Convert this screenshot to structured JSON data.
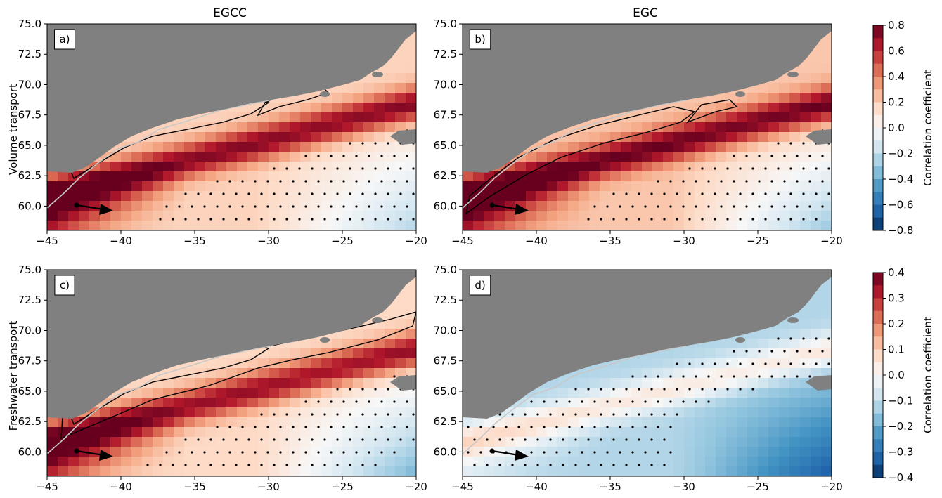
{
  "figure": {
    "column_titles": [
      "EGCC",
      "EGC"
    ],
    "row_labels": [
      "Volume transport",
      "Freshwater transport"
    ],
    "panel_labels": [
      "a)",
      "b)",
      "c)",
      "d)"
    ],
    "colorbar_label": "Correlation coefficient"
  },
  "colors": {
    "land": "#808080",
    "colormap": "RdBu_r",
    "significance_contour": "#000000",
    "front_line": "#c8c8c8",
    "stipple": "#000000"
  },
  "chart_data": [
    {
      "type": "heatmap",
      "panel": "a)",
      "title": "EGCC",
      "ylabel": "Volume transport",
      "xlim": [
        -45,
        -20
      ],
      "ylim": [
        58,
        75
      ],
      "xticks": [
        "−45",
        "−40",
        "−35",
        "−30",
        "−25",
        "−20"
      ],
      "yticks": [
        "60.0",
        "62.5",
        "65.0",
        "67.5",
        "70.0",
        "72.5",
        "75.0"
      ],
      "clim": [
        -0.8,
        0.8
      ],
      "features": {
        "shelf_max": 0.56,
        "ridge_max": 0.52,
        "interior_level": 0.18,
        "southeast_min": -0.2
      }
    },
    {
      "type": "heatmap",
      "panel": "b)",
      "title": "EGC",
      "xlim": [
        -45,
        -20
      ],
      "ylim": [
        58,
        75
      ],
      "xticks": [
        "−45",
        "−40",
        "−35",
        "−30",
        "−25",
        "−20"
      ],
      "yticks": [
        "60.0",
        "62.5",
        "65.0",
        "67.5",
        "70.0",
        "72.5",
        "75.0"
      ],
      "clim": [
        -0.8,
        0.8
      ],
      "features": {
        "shelf_max": 0.58,
        "ridge_max": 0.5,
        "interior_level": 0.22,
        "southeast_min": -0.26
      }
    },
    {
      "type": "heatmap",
      "panel": "c)",
      "ylabel": "Freshwater transport",
      "xlim": [
        -45,
        -20
      ],
      "ylim": [
        58,
        75
      ],
      "xticks": [
        "−45",
        "−40",
        "−35",
        "−30",
        "−25",
        "−20"
      ],
      "yticks": [
        "60.0",
        "62.5",
        "65.0",
        "67.5",
        "70.0",
        "72.5",
        "75.0"
      ],
      "clim": [
        -0.4,
        0.4
      ],
      "features": {
        "shelf_max": 0.27,
        "ridge_max": 0.25,
        "interior_level": 0.08,
        "southeast_min": -0.16
      }
    },
    {
      "type": "heatmap",
      "panel": "d)",
      "xlim": [
        -45,
        -20
      ],
      "ylim": [
        58,
        75
      ],
      "xticks": [
        "−45",
        "−40",
        "−35",
        "−30",
        "−25",
        "−20"
      ],
      "yticks": [
        "60.0",
        "62.5",
        "65.0",
        "67.5",
        "70.0",
        "72.5",
        "75.0"
      ],
      "clim": [
        -0.4,
        0.4
      ],
      "features": {
        "shelf_max": 0.16,
        "ridge_max": 0.08,
        "interior_level": -0.12,
        "southeast_min": -0.28
      }
    }
  ],
  "colorbars": [
    {
      "rows": "volume transport",
      "ticks": [
        "0.8",
        "0.6",
        "0.4",
        "0.2",
        "0.0",
        "−0.2",
        "−0.4",
        "−0.6",
        "−0.8"
      ],
      "label": "Correlation coefficient"
    },
    {
      "rows": "freshwater transport",
      "ticks": [
        "0.4",
        "0.3",
        "0.2",
        "0.1",
        "0.0",
        "−0.1",
        "−0.2",
        "−0.3",
        "−0.4"
      ],
      "label": "Correlation coefficient"
    }
  ]
}
